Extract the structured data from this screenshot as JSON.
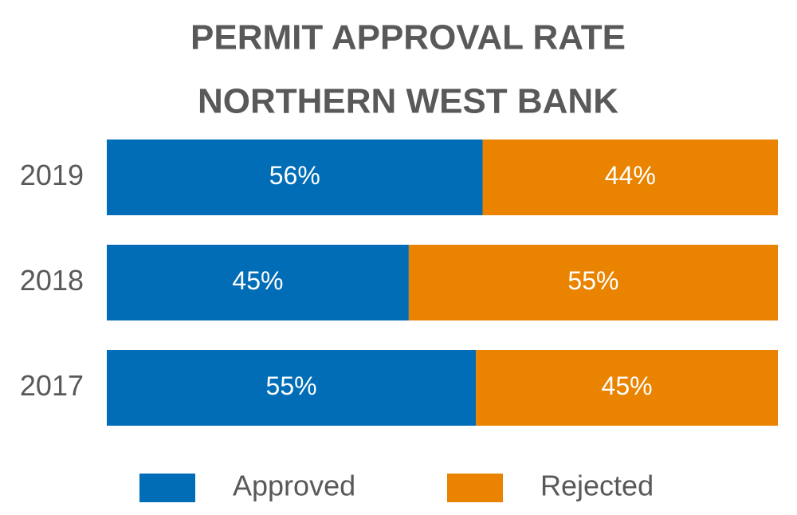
{
  "chart_data": {
    "type": "stacked-bar-horizontal",
    "title": "PERMIT APPROVAL RATE",
    "subtitle": "NORTHERN WEST BANK",
    "categories": [
      "2019",
      "2018",
      "2017"
    ],
    "series": [
      {
        "name": "Approved",
        "color": "#006db6",
        "values": [
          56,
          45,
          55
        ],
        "value_labels": [
          "56%",
          "45%",
          "55%"
        ]
      },
      {
        "name": "Rejected",
        "color": "#e98300",
        "values": [
          44,
          55,
          45
        ],
        "value_labels": [
          "44%",
          "55%",
          "45%"
        ]
      }
    ],
    "xlim": [
      0,
      100
    ]
  }
}
